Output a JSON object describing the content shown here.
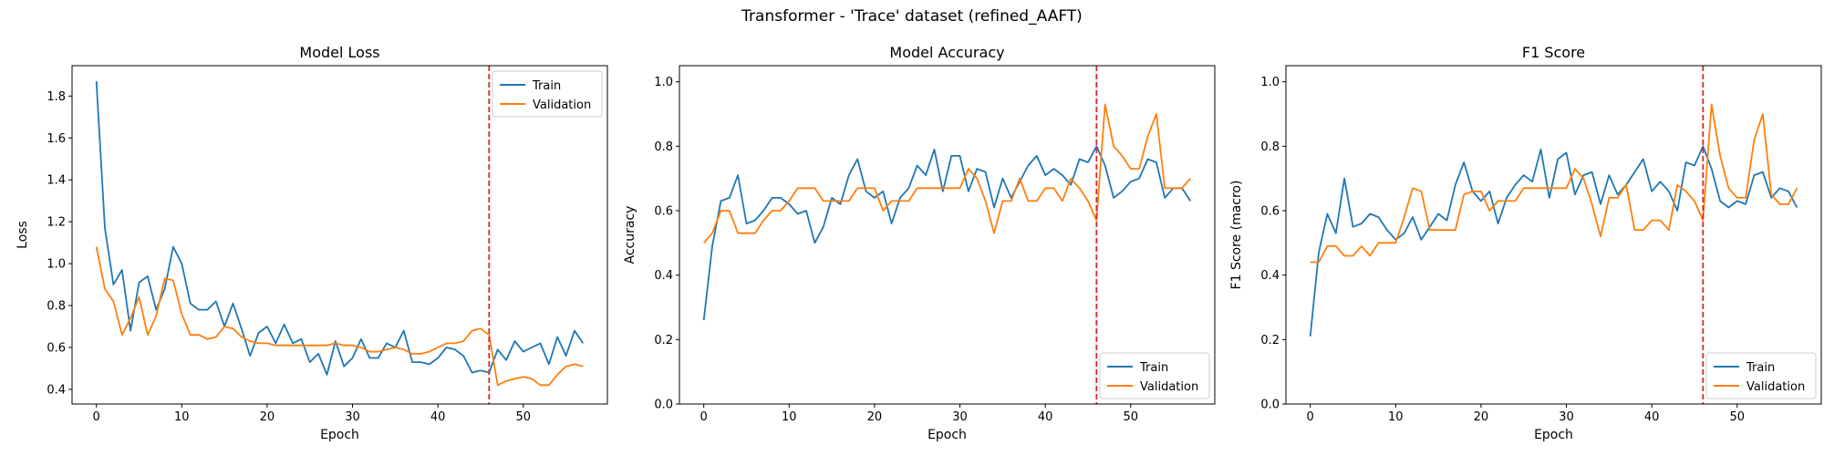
{
  "figure": {
    "suptitle": "Transformer - 'Trace' dataset (refined_AAFT)"
  },
  "colors": {
    "train": "#1f77b4",
    "validation": "#ff7f0e",
    "marker": "#d62728"
  },
  "chart_data": [
    {
      "type": "line",
      "title": "Model Loss",
      "xlabel": "Epoch",
      "ylabel": "Loss",
      "xlim": [
        -2.85,
        59.85
      ],
      "ylim": [
        0.33,
        1.945
      ],
      "xticks": [
        0,
        10,
        20,
        30,
        40,
        50
      ],
      "yticks": [
        0.4,
        0.6,
        0.8,
        1.0,
        1.2,
        1.4,
        1.6,
        1.8
      ],
      "ytick_labels": [
        "0.4",
        "0.6",
        "0.8",
        "1.0",
        "1.2",
        "1.4",
        "1.6",
        "1.8"
      ],
      "vline_x": 46,
      "legend_loc": "upper right",
      "grid": false,
      "x": [
        0,
        1,
        2,
        3,
        4,
        5,
        6,
        7,
        8,
        9,
        10,
        11,
        12,
        13,
        14,
        15,
        16,
        17,
        18,
        19,
        20,
        21,
        22,
        23,
        24,
        25,
        26,
        27,
        28,
        29,
        30,
        31,
        32,
        33,
        34,
        35,
        36,
        37,
        38,
        39,
        40,
        41,
        42,
        43,
        44,
        45,
        46,
        47,
        48,
        49,
        50,
        51,
        52,
        53,
        54,
        55,
        56,
        57
      ],
      "series": [
        {
          "name": "Train",
          "values": [
            1.87,
            1.17,
            0.9,
            0.97,
            0.68,
            0.91,
            0.94,
            0.78,
            0.88,
            1.08,
            1.0,
            0.81,
            0.78,
            0.78,
            0.82,
            0.7,
            0.81,
            0.69,
            0.56,
            0.67,
            0.7,
            0.62,
            0.71,
            0.62,
            0.64,
            0.53,
            0.57,
            0.47,
            0.63,
            0.51,
            0.55,
            0.64,
            0.55,
            0.55,
            0.62,
            0.6,
            0.68,
            0.53,
            0.53,
            0.52,
            0.55,
            0.6,
            0.59,
            0.56,
            0.48,
            0.49,
            0.48,
            0.59,
            0.54,
            0.63,
            0.58,
            0.6,
            0.62,
            0.52,
            0.65,
            0.56,
            0.68,
            0.62
          ]
        },
        {
          "name": "Validation",
          "values": [
            1.08,
            0.88,
            0.82,
            0.66,
            0.74,
            0.84,
            0.66,
            0.75,
            0.93,
            0.92,
            0.76,
            0.66,
            0.66,
            0.64,
            0.65,
            0.7,
            0.69,
            0.65,
            0.63,
            0.62,
            0.62,
            0.61,
            0.61,
            0.61,
            0.61,
            0.61,
            0.61,
            0.61,
            0.62,
            0.61,
            0.61,
            0.6,
            0.58,
            0.58,
            0.59,
            0.6,
            0.59,
            0.57,
            0.57,
            0.58,
            0.6,
            0.62,
            0.62,
            0.63,
            0.68,
            0.69,
            0.66,
            0.42,
            0.44,
            0.45,
            0.46,
            0.45,
            0.42,
            0.42,
            0.47,
            0.51,
            0.52,
            0.51
          ]
        }
      ]
    },
    {
      "type": "line",
      "title": "Model Accuracy",
      "xlabel": "Epoch",
      "ylabel": "Accuracy",
      "xlim": [
        -2.85,
        59.85
      ],
      "ylim": [
        0.0,
        1.05
      ],
      "xticks": [
        0,
        10,
        20,
        30,
        40,
        50
      ],
      "yticks": [
        0.0,
        0.2,
        0.4,
        0.6,
        0.8,
        1.0
      ],
      "ytick_labels": [
        "0.0",
        "0.2",
        "0.4",
        "0.6",
        "0.8",
        "1.0"
      ],
      "vline_x": 46,
      "legend_loc": "lower right",
      "grid": false,
      "x": [
        0,
        1,
        2,
        3,
        4,
        5,
        6,
        7,
        8,
        9,
        10,
        11,
        12,
        13,
        14,
        15,
        16,
        17,
        18,
        19,
        20,
        21,
        22,
        23,
        24,
        25,
        26,
        27,
        28,
        29,
        30,
        31,
        32,
        33,
        34,
        35,
        36,
        37,
        38,
        39,
        40,
        41,
        42,
        43,
        44,
        45,
        46,
        47,
        48,
        49,
        50,
        51,
        52,
        53,
        54,
        55,
        56,
        57
      ],
      "series": [
        {
          "name": "Train",
          "values": [
            0.26,
            0.49,
            0.63,
            0.64,
            0.71,
            0.56,
            0.57,
            0.6,
            0.64,
            0.64,
            0.62,
            0.59,
            0.6,
            0.5,
            0.55,
            0.64,
            0.62,
            0.71,
            0.76,
            0.66,
            0.64,
            0.66,
            0.56,
            0.64,
            0.67,
            0.74,
            0.71,
            0.79,
            0.66,
            0.77,
            0.77,
            0.66,
            0.73,
            0.72,
            0.61,
            0.7,
            0.64,
            0.69,
            0.74,
            0.77,
            0.71,
            0.73,
            0.71,
            0.68,
            0.76,
            0.75,
            0.8,
            0.74,
            0.64,
            0.66,
            0.69,
            0.7,
            0.76,
            0.75,
            0.64,
            0.67,
            0.67,
            0.63
          ]
        },
        {
          "name": "Validation",
          "values": [
            0.5,
            0.53,
            0.6,
            0.6,
            0.53,
            0.53,
            0.53,
            0.57,
            0.6,
            0.6,
            0.63,
            0.67,
            0.67,
            0.67,
            0.63,
            0.63,
            0.63,
            0.63,
            0.67,
            0.67,
            0.67,
            0.6,
            0.63,
            0.63,
            0.63,
            0.67,
            0.67,
            0.67,
            0.67,
            0.67,
            0.67,
            0.73,
            0.7,
            0.63,
            0.53,
            0.63,
            0.63,
            0.7,
            0.63,
            0.63,
            0.67,
            0.67,
            0.63,
            0.7,
            0.67,
            0.63,
            0.57,
            0.93,
            0.8,
            0.77,
            0.73,
            0.73,
            0.83,
            0.9,
            0.67,
            0.67,
            0.67,
            0.7
          ]
        }
      ]
    },
    {
      "type": "line",
      "title": "F1 Score",
      "xlabel": "Epoch",
      "ylabel": "F1 Score (macro)",
      "xlim": [
        -2.85,
        59.85
      ],
      "ylim": [
        0.0,
        1.05
      ],
      "xticks": [
        0,
        10,
        20,
        30,
        40,
        50
      ],
      "yticks": [
        0.0,
        0.2,
        0.4,
        0.6,
        0.8,
        1.0
      ],
      "ytick_labels": [
        "0.0",
        "0.2",
        "0.4",
        "0.6",
        "0.8",
        "1.0"
      ],
      "vline_x": 46,
      "legend_loc": "lower right",
      "grid": false,
      "x": [
        0,
        1,
        2,
        3,
        4,
        5,
        6,
        7,
        8,
        9,
        10,
        11,
        12,
        13,
        14,
        15,
        16,
        17,
        18,
        19,
        20,
        21,
        22,
        23,
        24,
        25,
        26,
        27,
        28,
        29,
        30,
        31,
        32,
        33,
        34,
        35,
        36,
        37,
        38,
        39,
        40,
        41,
        42,
        43,
        44,
        45,
        46,
        47,
        48,
        49,
        50,
        51,
        52,
        53,
        54,
        55,
        56,
        57
      ],
      "series": [
        {
          "name": "Train",
          "values": [
            0.21,
            0.47,
            0.59,
            0.53,
            0.7,
            0.55,
            0.56,
            0.59,
            0.58,
            0.54,
            0.51,
            0.53,
            0.58,
            0.51,
            0.55,
            0.59,
            0.57,
            0.68,
            0.75,
            0.66,
            0.63,
            0.66,
            0.56,
            0.64,
            0.68,
            0.71,
            0.69,
            0.79,
            0.64,
            0.76,
            0.78,
            0.65,
            0.71,
            0.72,
            0.62,
            0.71,
            0.65,
            0.68,
            0.72,
            0.76,
            0.66,
            0.69,
            0.66,
            0.6,
            0.75,
            0.74,
            0.8,
            0.73,
            0.63,
            0.61,
            0.63,
            0.62,
            0.71,
            0.72,
            0.64,
            0.67,
            0.66,
            0.61
          ]
        },
        {
          "name": "Validation",
          "values": [
            0.44,
            0.44,
            0.49,
            0.49,
            0.46,
            0.46,
            0.49,
            0.46,
            0.5,
            0.5,
            0.5,
            0.58,
            0.67,
            0.66,
            0.54,
            0.54,
            0.54,
            0.54,
            0.65,
            0.66,
            0.66,
            0.6,
            0.63,
            0.63,
            0.63,
            0.67,
            0.67,
            0.67,
            0.67,
            0.67,
            0.67,
            0.73,
            0.7,
            0.62,
            0.52,
            0.64,
            0.64,
            0.68,
            0.54,
            0.54,
            0.57,
            0.57,
            0.54,
            0.68,
            0.66,
            0.63,
            0.57,
            0.93,
            0.77,
            0.67,
            0.64,
            0.64,
            0.82,
            0.9,
            0.65,
            0.62,
            0.62,
            0.67
          ]
        }
      ]
    }
  ]
}
